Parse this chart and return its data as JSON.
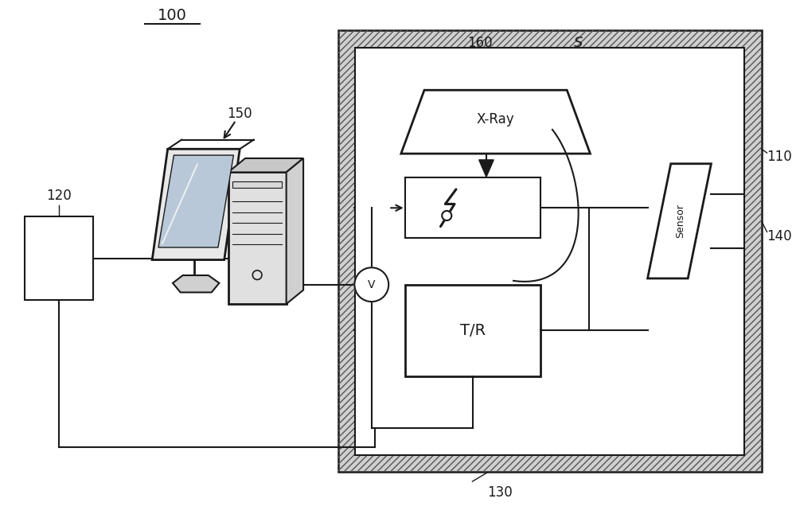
{
  "bg_color": "#ffffff",
  "label_100": "100",
  "label_110": "110",
  "label_120": "120",
  "label_130": "130",
  "label_140": "140",
  "label_150": "150",
  "label_160": "160",
  "label_S": "S",
  "label_xray": "X-Ray",
  "label_tr": "T/R",
  "label_sensor": "Sensor",
  "label_V": "V",
  "line_color": "#1a1a1a",
  "box_fill": "#ffffff",
  "border_green": "#4a7a4a",
  "hatch_color": "#aaaaaa"
}
